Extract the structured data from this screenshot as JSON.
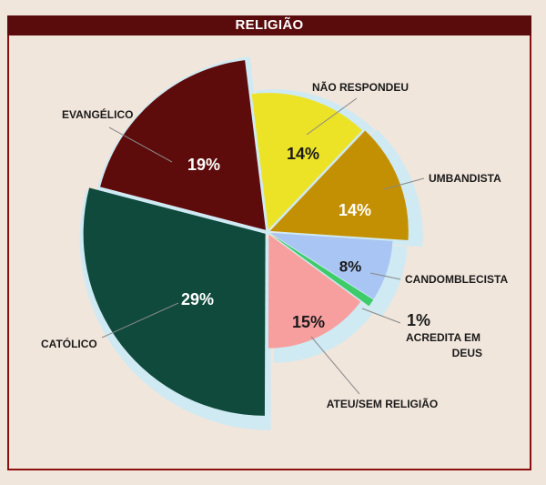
{
  "chart_data": {
    "type": "pie",
    "title": "RELIGIÃO",
    "slices": [
      {
        "label": "NÃO RESPONDEU",
        "value": 14,
        "value_label": "14%",
        "color": "#ede326",
        "text_color": "#1a1a1a"
      },
      {
        "label": "UMBANDISTA",
        "value": 14,
        "value_label": "14%",
        "color": "#c49003",
        "text_color": "#ffffff"
      },
      {
        "label": "CANDOMBLECISTA",
        "value": 8,
        "value_label": "8%",
        "color": "#a9c5f3",
        "text_color": "#1a1a1a"
      },
      {
        "label": "ACREDITA EM DEUS",
        "value": 1,
        "value_label": "1%",
        "color": "#3ecb6a",
        "text_color": "#1a1a1a"
      },
      {
        "label": "ATEU/SEM RELIGIÃO",
        "value": 15,
        "value_label": "15%",
        "color": "#f79f9f",
        "text_color": "#1a1a1a"
      },
      {
        "label": "CATÓLICO",
        "value": 29,
        "value_label": "29%",
        "color": "#0f4a3c",
        "text_color": "#ffffff"
      },
      {
        "label": "EVANGÉLICO",
        "value": 19,
        "value_label": "19%",
        "color": "#5e0b0b",
        "text_color": "#ffffff"
      }
    ],
    "shadow_color": "#cfeaf3",
    "label_color": "#1a1a1a"
  }
}
